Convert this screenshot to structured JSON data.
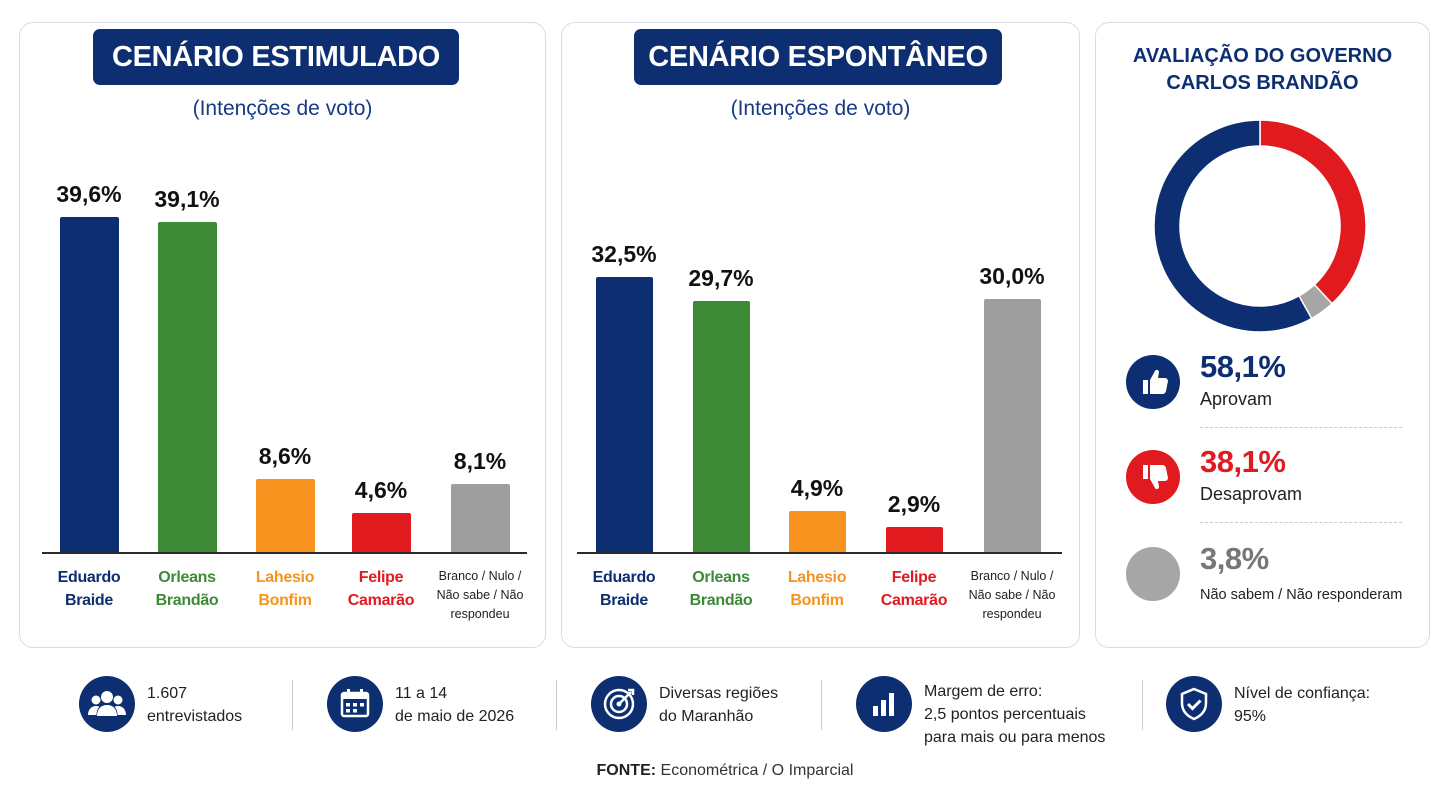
{
  "chart_data": [
    {
      "type": "bar",
      "title": "CENÁRIO ESTIMULADO",
      "subtitle": "(Intenções de voto)",
      "categories": [
        "Eduardo Braide",
        "Orleans Brandão",
        "Lahesio Bonfim",
        "Felipe Camarão",
        "Branco / Nulo / Não sabe / Não respondeu"
      ],
      "category_lines": [
        [
          "Eduardo",
          "Braide"
        ],
        [
          "Orleans",
          "Brandão"
        ],
        [
          "Lahesio",
          "Bonfim"
        ],
        [
          "Felipe",
          "Camarão"
        ],
        [
          "Branco / Nulo /",
          "Não sabe / Não",
          "respondeu"
        ]
      ],
      "values": [
        39.6,
        39.1,
        8.6,
        4.6,
        8.1
      ],
      "value_labels": [
        "39,6%",
        "39,1%",
        "8,6%",
        "4,6%",
        "8,1%"
      ],
      "colors": [
        "#0d2f72",
        "#3c8a35",
        "#f7931e",
        "#e01a1f",
        "#9e9e9e"
      ],
      "label_colors": [
        "#0d2f72",
        "#3c8a35",
        "#f7931e",
        "#e01a1f",
        "#222222"
      ],
      "ylim": [
        0,
        40
      ],
      "grid": false
    },
    {
      "type": "bar",
      "title": "CENÁRIO ESPONTÂNEO",
      "subtitle": "(Intenções de voto)",
      "categories": [
        "Eduardo Braide",
        "Orleans Brandão",
        "Lahesio Bonfim",
        "Felipe Camarão",
        "Branco / Nulo / Não sabe / Não respondeu"
      ],
      "category_lines": [
        [
          "Eduardo",
          "Braide"
        ],
        [
          "Orleans",
          "Brandão"
        ],
        [
          "Lahesio",
          "Bonfim"
        ],
        [
          "Felipe",
          "Camarão"
        ],
        [
          "Branco / Nulo /",
          "Não sabe / Não",
          "respondeu"
        ]
      ],
      "values": [
        32.5,
        29.7,
        4.9,
        2.9,
        30.0
      ],
      "value_labels": [
        "32,5%",
        "29,7%",
        "4,9%",
        "2,9%",
        "30,0%"
      ],
      "colors": [
        "#0d2f72",
        "#3c8a35",
        "#f7931e",
        "#e01a1f",
        "#9e9e9e"
      ],
      "label_colors": [
        "#0d2f72",
        "#3c8a35",
        "#f7931e",
        "#e01a1f",
        "#222222"
      ],
      "ylim": [
        0,
        40
      ],
      "grid": false
    },
    {
      "type": "pie",
      "title_lines": [
        "AVALIAÇÃO DO GOVERNO",
        "CARLOS BRANDÃO"
      ],
      "slices": [
        {
          "name": "Aprovam",
          "value": 58.1,
          "label": "58,1%",
          "color": "#0d2f72",
          "icon": "thumbs-up-icon"
        },
        {
          "name": "Desaprovam",
          "value": 38.1,
          "label": "38,1%",
          "color": "#e01a1f",
          "icon": "thumbs-down-icon"
        },
        {
          "name": "Não sabem / Não responderam",
          "value": 3.8,
          "label": "3,8%",
          "color": "#a6a6a6",
          "icon": "none"
        }
      ],
      "donut": true
    }
  ],
  "footer": [
    {
      "icon": "people-icon",
      "lines": [
        "1.607",
        "entrevistados"
      ]
    },
    {
      "icon": "calendar-icon",
      "lines": [
        "11 a 14",
        "de maio de 2026"
      ]
    },
    {
      "icon": "target-icon",
      "lines": [
        "Diversas regiões",
        "do Maranhão"
      ]
    },
    {
      "icon": "bar-chart-icon",
      "lines": [
        "Margem de erro:",
        "2,5 pontos percentuais",
        "para mais ou para menos"
      ]
    },
    {
      "icon": "shield-icon",
      "lines": [
        "Nível de confiança:",
        "95%"
      ]
    }
  ],
  "source": {
    "label": "FONTE:",
    "text": "Econométrica / O Imparcial"
  }
}
